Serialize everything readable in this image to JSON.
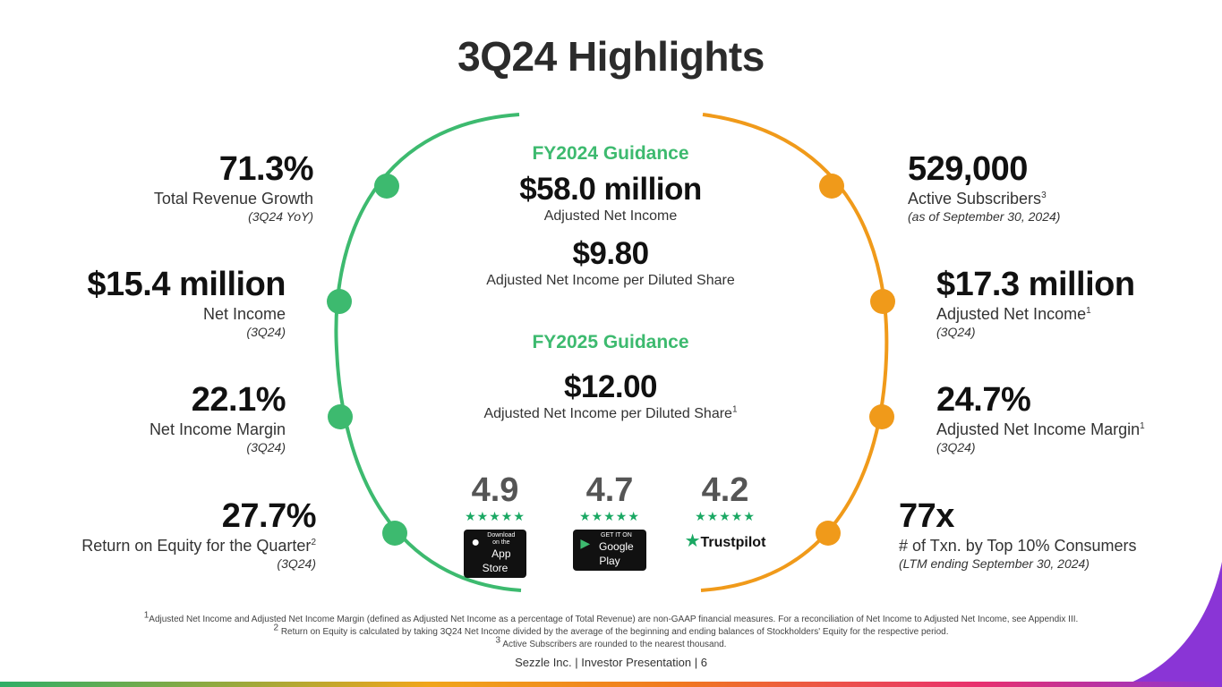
{
  "title": "3Q24 Highlights",
  "left_metrics": [
    {
      "value": "71.3%",
      "label": "Total Revenue Growth",
      "sup": "",
      "sub": "(3Q24 YoY)"
    },
    {
      "value": "$15.4 million",
      "label": "Net Income",
      "sup": "",
      "sub": "(3Q24)"
    },
    {
      "value": "22.1%",
      "label": "Net Income Margin",
      "sup": "",
      "sub": "(3Q24)"
    },
    {
      "value": "27.7%",
      "label": "Return on Equity for the Quarter",
      "sup": "2",
      "sub": "(3Q24)"
    }
  ],
  "right_metrics": [
    {
      "value": "529,000",
      "label": "Active Subscribers",
      "sup": "3",
      "sub": "(as of September 30, 2024)"
    },
    {
      "value": "$17.3 million",
      "label": "Adjusted Net Income",
      "sup": "1",
      "sub": "(3Q24)"
    },
    {
      "value": "24.7%",
      "label": "Adjusted Net Income Margin",
      "sup": "1",
      "sub": "(3Q24)"
    },
    {
      "value": "77x",
      "label": "# of Txn. by Top 10% Consumers",
      "sup": "",
      "sub": "(LTM ending September 30, 2024)"
    }
  ],
  "center": {
    "fy2024_heading": "FY2024 Guidance",
    "fy2024_value1": "$58.0 million",
    "fy2024_label1": "Adjusted Net Income",
    "fy2024_value2": "$9.80",
    "fy2024_label2": "Adjusted Net Income per Diluted Share",
    "fy2025_heading": "FY2025 Guidance",
    "fy2025_value": "$12.00",
    "fy2025_label": "Adjusted Net Income per Diluted Share",
    "fy2025_sup": "1"
  },
  "ratings": [
    {
      "value": "4.9",
      "stars": "★★★★★",
      "store_small": "Download on the",
      "store": "App Store",
      "icon": "apple-icon"
    },
    {
      "value": "4.7",
      "stars": "★★★★★",
      "store_small": "GET IT ON",
      "store": "Google Play",
      "icon": "google-play-icon"
    },
    {
      "value": "4.2",
      "stars": "★★★★★",
      "store_small": "",
      "store": "Trustpilot",
      "icon": "trustpilot-star-icon"
    }
  ],
  "footnotes": {
    "n1_num": "1",
    "n1": "Adjusted Net Income and Adjusted Net Income Margin (defined as Adjusted Net Income as a percentage of Total Revenue) are non-GAAP financial measures. For a reconciliation of Net Income to Adjusted Net Income, see Appendix III.",
    "n2_num": "2",
    "n2": "Return on Equity is calculated by taking 3Q24 Net Income divided by the average of the beginning and ending balances of Stockholders' Equity for the respective period.",
    "n3_num": "3",
    "n3": "Active Subscribers are rounded to the nearest thousand."
  },
  "footer": "Sezzle Inc. | Investor Presentation | 6",
  "colors": {
    "green": "#3dba6f",
    "orange": "#f09a1a",
    "purple": "#8a35d6"
  }
}
